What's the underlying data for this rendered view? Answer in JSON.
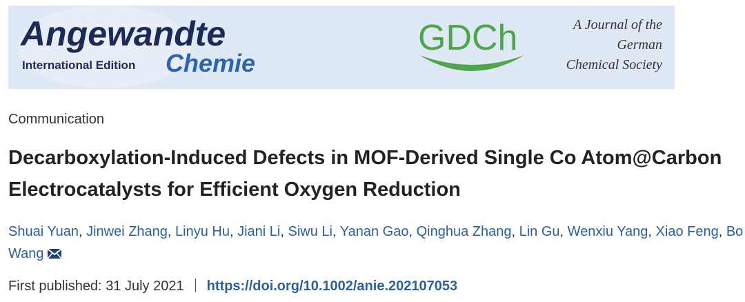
{
  "banner": {
    "journal_name": "Angewandte",
    "edition": "International Edition",
    "journal_subname": "Chemie",
    "society_logo": "GDCh",
    "society_tagline": [
      "A Journal of the",
      "German",
      "Chemical Society"
    ]
  },
  "article": {
    "type": "Communication",
    "title": "Decarboxylation-Induced Defects in MOF-Derived Single Co Atom@Carbon Electrocatalysts for Efficient Oxygen Reduction",
    "authors": [
      "Shuai Yuan",
      "Jinwei Zhang",
      "Linyu Hu",
      "Jiani Li",
      "Siwu Li",
      "Yanan Gao",
      "Qinghua Zhang",
      "Lin Gu",
      "Wenxiu Yang",
      "Xiao Feng",
      "Bo Wang"
    ],
    "published_label": "First published:",
    "published_date": "31 July 2021",
    "doi": "https://doi.org/10.1002/anie.202107053"
  }
}
